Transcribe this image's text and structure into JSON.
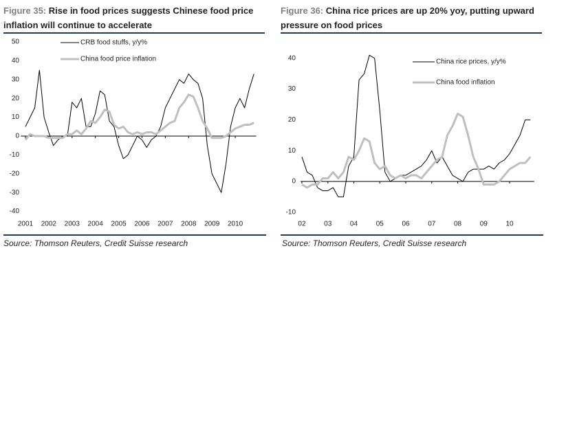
{
  "chart_data": [
    {
      "type": "line",
      "figure_label": "Figure 35:",
      "title": "Rise in food prices suggests Chinese food price inflation will continue to accelerate",
      "source": "Source: Thomson Reuters, Credit Suisse research",
      "x": [
        2001.0,
        2001.2,
        2001.4,
        2001.6,
        2001.8,
        2002.0,
        2002.2,
        2002.4,
        2002.6,
        2002.8,
        2003.0,
        2003.2,
        2003.4,
        2003.6,
        2003.8,
        2004.0,
        2004.2,
        2004.4,
        2004.6,
        2004.8,
        2005.0,
        2005.2,
        2005.4,
        2005.6,
        2005.8,
        2006.0,
        2006.2,
        2006.4,
        2006.6,
        2006.8,
        2007.0,
        2007.2,
        2007.4,
        2007.6,
        2007.8,
        2008.0,
        2008.2,
        2008.4,
        2008.6,
        2008.8,
        2009.0,
        2009.2,
        2009.4,
        2009.6,
        2009.8,
        2010.0,
        2010.2,
        2010.4,
        2010.6,
        2010.8
      ],
      "xlim": [
        2000.8,
        2010.9
      ],
      "xticks": [
        2001,
        2002,
        2003,
        2004,
        2005,
        2006,
        2007,
        2008,
        2009,
        2010
      ],
      "ylim": [
        -40,
        50
      ],
      "yticks": [
        -40,
        -30,
        -20,
        -10,
        0,
        10,
        20,
        30,
        40,
        50
      ],
      "legend": "top-center",
      "series": [
        {
          "name": "CRB food stuffs, y/y%",
          "color": "#000000",
          "values": [
            5,
            10,
            15,
            35,
            10,
            2,
            -5,
            -2,
            0,
            0,
            18,
            15,
            20,
            5,
            5,
            12,
            24,
            22,
            8,
            5,
            -5,
            -12,
            -10,
            -5,
            0,
            -2,
            -6,
            -2,
            0,
            5,
            15,
            20,
            25,
            30,
            28,
            33,
            30,
            28,
            20,
            -5,
            -20,
            -25,
            -30,
            -15,
            5,
            15,
            20,
            15,
            25,
            33
          ]
        },
        {
          "name": "China food price inflation",
          "color": "#bfbfbf",
          "values": [
            -2,
            1,
            0,
            0,
            0,
            -1,
            -1,
            -1,
            -1,
            1,
            1,
            3,
            1,
            4,
            8,
            7,
            10,
            14,
            13,
            6,
            4,
            5,
            2,
            1,
            2,
            1,
            2,
            2,
            1,
            3,
            5,
            7,
            8,
            15,
            18,
            22,
            21,
            15,
            8,
            4,
            -1,
            -1,
            -1,
            0,
            2,
            4,
            5,
            6,
            6,
            7
          ]
        }
      ]
    },
    {
      "type": "line",
      "figure_label": "Figure 36:",
      "title": "China rice prices are up 20% yoy, putting upward pressure on food prices",
      "source": "Source: Thomson Reuters, Credit Suisse research",
      "x": [
        2002.0,
        2002.2,
        2002.4,
        2002.6,
        2002.8,
        2003.0,
        2003.2,
        2003.4,
        2003.6,
        2003.8,
        2004.0,
        2004.2,
        2004.4,
        2004.6,
        2004.8,
        2005.0,
        2005.2,
        2005.4,
        2005.6,
        2005.8,
        2006.0,
        2006.2,
        2006.4,
        2006.6,
        2006.8,
        2007.0,
        2007.2,
        2007.4,
        2007.6,
        2007.8,
        2008.0,
        2008.2,
        2008.4,
        2008.6,
        2008.8,
        2009.0,
        2009.2,
        2009.4,
        2009.6,
        2009.8,
        2010.0,
        2010.2,
        2010.4,
        2010.6,
        2010.8
      ],
      "xlim": [
        2001.95,
        2010.95
      ],
      "xticks": [
        {
          "value": 2002,
          "label": "02"
        },
        {
          "value": 2003,
          "label": "03"
        },
        {
          "value": 2004,
          "label": "04"
        },
        {
          "value": 2005,
          "label": "05"
        },
        {
          "value": 2006,
          "label": "06"
        },
        {
          "value": 2007,
          "label": "07"
        },
        {
          "value": 2008,
          "label": "08"
        },
        {
          "value": 2009,
          "label": "09"
        },
        {
          "value": 2010,
          "label": "10"
        }
      ],
      "ylim": [
        -10,
        40
      ],
      "yticks": [
        -10,
        0,
        10,
        20,
        30,
        40
      ],
      "legend": "top-right",
      "series": [
        {
          "name": "China rice prices, y/y%",
          "color": "#000000",
          "values": [
            8,
            3,
            2,
            -2,
            -3,
            -3,
            -2,
            -5,
            -5,
            5,
            8,
            33,
            35,
            41,
            40,
            23,
            3,
            0,
            1,
            2,
            2,
            3,
            4,
            5,
            7,
            10,
            6,
            8,
            5,
            2,
            1,
            0,
            3,
            4,
            4,
            4,
            5,
            4,
            6,
            7,
            9,
            12,
            15,
            20,
            20
          ]
        },
        {
          "name": "China food inflation",
          "color": "#bfbfbf",
          "values": [
            -1,
            -2,
            -1,
            -1,
            1,
            1,
            3,
            1,
            3,
            8,
            7,
            10,
            14,
            13,
            6,
            4,
            5,
            2,
            1,
            2,
            1,
            2,
            2,
            1,
            3,
            5,
            7,
            8,
            15,
            18,
            22,
            21,
            15,
            8,
            4,
            -1,
            -1,
            -1,
            0,
            2,
            4,
            5,
            6,
            6,
            8
          ]
        }
      ]
    }
  ]
}
